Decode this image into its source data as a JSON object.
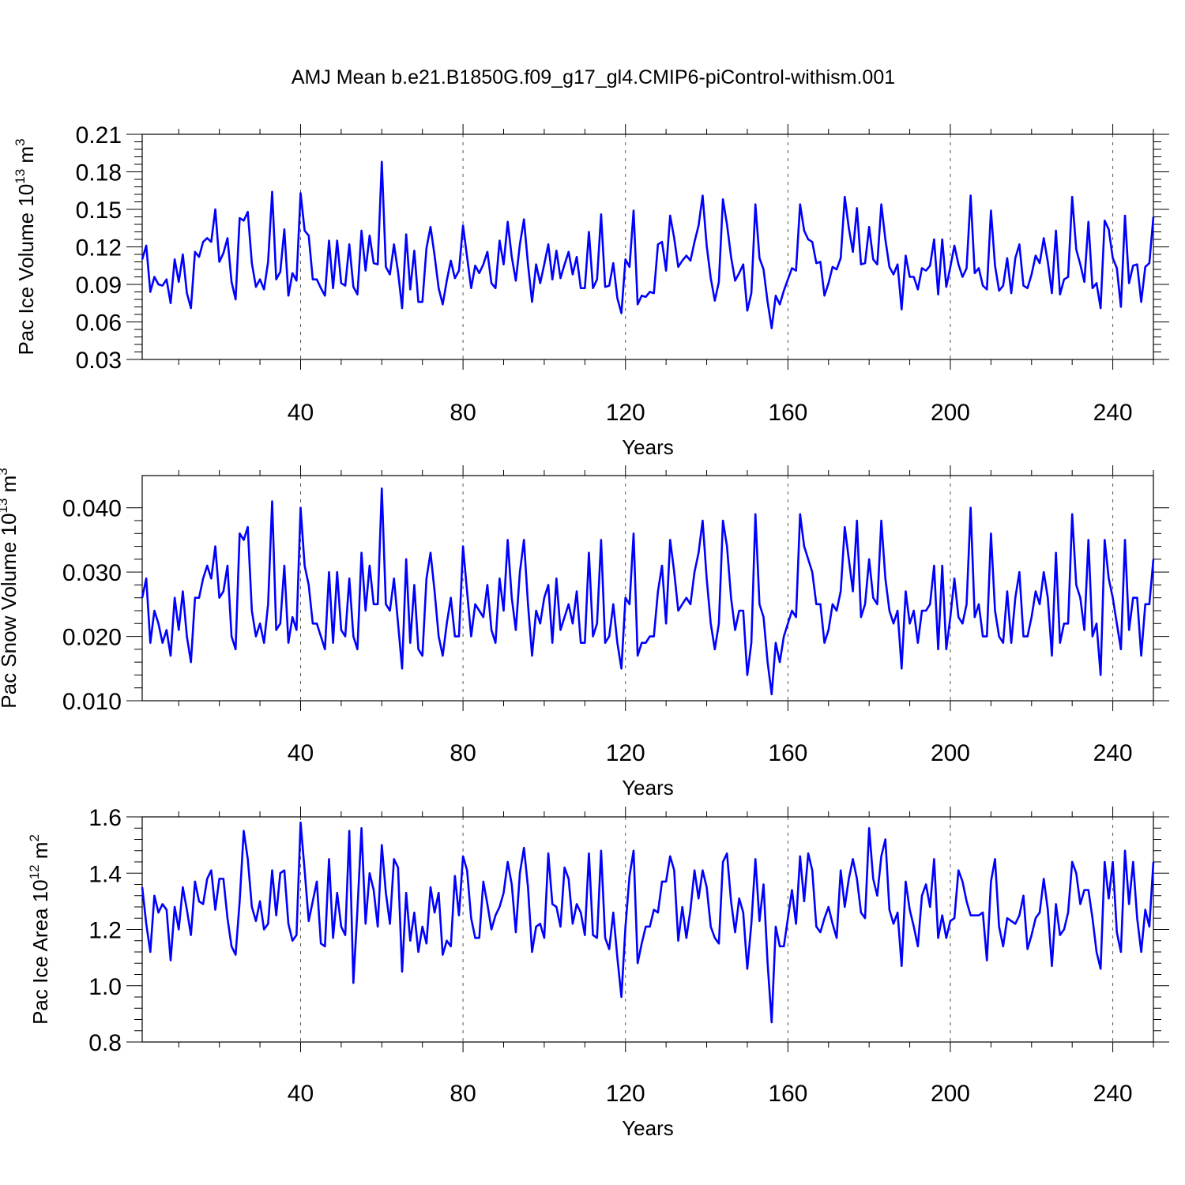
{
  "title": "AMJ Mean b.e21.B1850G.f09_g17_gl4.CMIP6-piControl-withism.001",
  "colors": {
    "line": "#0000ff",
    "axis": "#000000",
    "grid": "#555555"
  },
  "chart_data": [
    {
      "type": "line",
      "title": "AMJ Mean b.e21.B1850G.f09_g17_gl4.CMIP6-piControl-withism.001",
      "xlabel": "Years",
      "ylabel": {
        "main": "Pac Ice Volume 10",
        "sup": "13",
        "unit": " m",
        "unit_sup": "3"
      },
      "xlim": [
        1,
        250
      ],
      "ylim": [
        0.03,
        0.21
      ],
      "xticks": [
        40,
        80,
        120,
        160,
        200,
        240
      ],
      "xtick_labels": [
        "40",
        "80",
        "120",
        "160",
        "200",
        "240"
      ],
      "yticks": [
        0.03,
        0.06,
        0.09,
        0.12,
        0.15,
        0.18,
        0.21
      ],
      "ytick_labels": [
        "0.03",
        "0.06",
        "0.09",
        "0.12",
        "0.15",
        "0.18",
        "0.21"
      ],
      "grid": "vertical dashed at major x ticks",
      "x_start": 1,
      "values": [
        0.11,
        0.121,
        0.084,
        0.096,
        0.09,
        0.089,
        0.094,
        0.075,
        0.11,
        0.092,
        0.114,
        0.083,
        0.071,
        0.116,
        0.112,
        0.124,
        0.127,
        0.124,
        0.15,
        0.108,
        0.115,
        0.127,
        0.092,
        0.078,
        0.143,
        0.141,
        0.148,
        0.107,
        0.088,
        0.094,
        0.086,
        0.108,
        0.164,
        0.094,
        0.1,
        0.134,
        0.081,
        0.099,
        0.093,
        0.163,
        0.133,
        0.129,
        0.094,
        0.094,
        0.087,
        0.081,
        0.125,
        0.087,
        0.125,
        0.091,
        0.089,
        0.122,
        0.088,
        0.082,
        0.133,
        0.101,
        0.129,
        0.107,
        0.106,
        0.188,
        0.104,
        0.098,
        0.122,
        0.1,
        0.071,
        0.13,
        0.086,
        0.117,
        0.076,
        0.076,
        0.119,
        0.136,
        0.113,
        0.087,
        0.074,
        0.093,
        0.109,
        0.095,
        0.101,
        0.137,
        0.112,
        0.087,
        0.105,
        0.099,
        0.106,
        0.116,
        0.091,
        0.087,
        0.125,
        0.106,
        0.14,
        0.112,
        0.093,
        0.122,
        0.142,
        0.106,
        0.076,
        0.106,
        0.091,
        0.106,
        0.122,
        0.094,
        0.117,
        0.095,
        0.106,
        0.116,
        0.098,
        0.112,
        0.087,
        0.087,
        0.132,
        0.087,
        0.094,
        0.146,
        0.088,
        0.089,
        0.107,
        0.079,
        0.067,
        0.11,
        0.104,
        0.149,
        0.074,
        0.081,
        0.08,
        0.084,
        0.083,
        0.122,
        0.124,
        0.101,
        0.145,
        0.127,
        0.104,
        0.109,
        0.113,
        0.109,
        0.124,
        0.137,
        0.161,
        0.121,
        0.095,
        0.077,
        0.092,
        0.158,
        0.138,
        0.112,
        0.093,
        0.099,
        0.106,
        0.069,
        0.083,
        0.154,
        0.111,
        0.102,
        0.076,
        0.055,
        0.081,
        0.074,
        0.085,
        0.094,
        0.103,
        0.101,
        0.154,
        0.133,
        0.126,
        0.124,
        0.107,
        0.108,
        0.081,
        0.091,
        0.104,
        0.102,
        0.111,
        0.16,
        0.135,
        0.116,
        0.151,
        0.106,
        0.107,
        0.136,
        0.11,
        0.106,
        0.154,
        0.126,
        0.104,
        0.098,
        0.106,
        0.07,
        0.113,
        0.096,
        0.096,
        0.086,
        0.103,
        0.101,
        0.105,
        0.126,
        0.082,
        0.126,
        0.088,
        0.104,
        0.121,
        0.106,
        0.096,
        0.103,
        0.161,
        0.099,
        0.103,
        0.089,
        0.086,
        0.149,
        0.105,
        0.085,
        0.089,
        0.111,
        0.083,
        0.111,
        0.122,
        0.089,
        0.087,
        0.098,
        0.113,
        0.107,
        0.127,
        0.108,
        0.083,
        0.133,
        0.082,
        0.094,
        0.096,
        0.16,
        0.118,
        0.106,
        0.092,
        0.14,
        0.087,
        0.091,
        0.071,
        0.141,
        0.134,
        0.111,
        0.103,
        0.072,
        0.145,
        0.091,
        0.105,
        0.106,
        0.076,
        0.104,
        0.107,
        0.144
      ]
    },
    {
      "type": "line",
      "xlabel": "Years",
      "ylabel": {
        "main": "Pac Snow Volume 10",
        "sup": "13",
        "unit": " m",
        "unit_sup": "3"
      },
      "xlim": [
        1,
        250
      ],
      "ylim": [
        0.01,
        0.045
      ],
      "xticks": [
        40,
        80,
        120,
        160,
        200,
        240
      ],
      "xtick_labels": [
        "40",
        "80",
        "120",
        "160",
        "200",
        "240"
      ],
      "yticks": [
        0.01,
        0.02,
        0.03,
        0.04
      ],
      "ytick_labels": [
        "0.010",
        "0.020",
        "0.030",
        "0.040"
      ],
      "grid": "vertical dashed at major x ticks",
      "x_start": 1,
      "values": [
        0.026,
        0.029,
        0.019,
        0.024,
        0.022,
        0.019,
        0.021,
        0.017,
        0.026,
        0.021,
        0.027,
        0.02,
        0.016,
        0.026,
        0.026,
        0.029,
        0.031,
        0.029,
        0.034,
        0.026,
        0.027,
        0.031,
        0.02,
        0.018,
        0.036,
        0.035,
        0.037,
        0.024,
        0.02,
        0.022,
        0.019,
        0.025,
        0.041,
        0.021,
        0.022,
        0.031,
        0.019,
        0.023,
        0.021,
        0.04,
        0.031,
        0.028,
        0.022,
        0.022,
        0.02,
        0.018,
        0.03,
        0.019,
        0.03,
        0.021,
        0.02,
        0.029,
        0.02,
        0.018,
        0.033,
        0.024,
        0.031,
        0.025,
        0.025,
        0.043,
        0.025,
        0.024,
        0.029,
        0.022,
        0.015,
        0.032,
        0.019,
        0.028,
        0.018,
        0.017,
        0.029,
        0.033,
        0.027,
        0.02,
        0.017,
        0.022,
        0.026,
        0.02,
        0.02,
        0.034,
        0.027,
        0.02,
        0.025,
        0.024,
        0.023,
        0.028,
        0.021,
        0.019,
        0.029,
        0.024,
        0.035,
        0.026,
        0.021,
        0.03,
        0.035,
        0.025,
        0.017,
        0.024,
        0.022,
        0.026,
        0.028,
        0.019,
        0.029,
        0.021,
        0.023,
        0.025,
        0.022,
        0.027,
        0.019,
        0.019,
        0.033,
        0.02,
        0.022,
        0.035,
        0.019,
        0.02,
        0.025,
        0.019,
        0.015,
        0.026,
        0.025,
        0.036,
        0.017,
        0.019,
        0.019,
        0.02,
        0.02,
        0.027,
        0.031,
        0.022,
        0.035,
        0.03,
        0.024,
        0.025,
        0.026,
        0.025,
        0.03,
        0.033,
        0.038,
        0.029,
        0.022,
        0.018,
        0.022,
        0.038,
        0.034,
        0.026,
        0.021,
        0.024,
        0.024,
        0.014,
        0.019,
        0.039,
        0.025,
        0.023,
        0.016,
        0.011,
        0.019,
        0.016,
        0.02,
        0.022,
        0.024,
        0.023,
        0.039,
        0.034,
        0.032,
        0.03,
        0.025,
        0.025,
        0.019,
        0.021,
        0.025,
        0.024,
        0.027,
        0.037,
        0.032,
        0.027,
        0.038,
        0.023,
        0.025,
        0.032,
        0.026,
        0.025,
        0.038,
        0.029,
        0.024,
        0.022,
        0.024,
        0.015,
        0.027,
        0.022,
        0.024,
        0.019,
        0.024,
        0.024,
        0.025,
        0.031,
        0.018,
        0.031,
        0.018,
        0.023,
        0.029,
        0.023,
        0.022,
        0.025,
        0.04,
        0.023,
        0.025,
        0.02,
        0.02,
        0.036,
        0.024,
        0.02,
        0.019,
        0.027,
        0.019,
        0.026,
        0.03,
        0.02,
        0.02,
        0.023,
        0.027,
        0.025,
        0.03,
        0.026,
        0.017,
        0.033,
        0.019,
        0.022,
        0.022,
        0.039,
        0.028,
        0.026,
        0.021,
        0.035,
        0.02,
        0.022,
        0.014,
        0.035,
        0.029,
        0.026,
        0.022,
        0.018,
        0.035,
        0.021,
        0.026,
        0.026,
        0.017,
        0.025,
        0.025,
        0.032
      ]
    },
    {
      "type": "line",
      "xlabel": "Years",
      "ylabel": {
        "main": "Pac Ice Area 10",
        "sup": "12",
        "unit": " m",
        "unit_sup": "2"
      },
      "xlim": [
        1,
        250
      ],
      "ylim": [
        0.8,
        1.6
      ],
      "xticks": [
        40,
        80,
        120,
        160,
        200,
        240
      ],
      "xtick_labels": [
        "40",
        "80",
        "120",
        "160",
        "200",
        "240"
      ],
      "yticks": [
        0.8,
        1.0,
        1.2,
        1.4,
        1.6
      ],
      "ytick_labels": [
        "0.8",
        "1.0",
        "1.2",
        "1.4",
        "1.6"
      ],
      "grid": "vertical dashed at major x ticks",
      "x_start": 1,
      "values": [
        1.35,
        1.22,
        1.12,
        1.32,
        1.26,
        1.29,
        1.27,
        1.09,
        1.28,
        1.2,
        1.35,
        1.27,
        1.18,
        1.37,
        1.3,
        1.29,
        1.38,
        1.41,
        1.27,
        1.38,
        1.38,
        1.24,
        1.14,
        1.11,
        1.3,
        1.55,
        1.45,
        1.28,
        1.23,
        1.3,
        1.2,
        1.22,
        1.41,
        1.25,
        1.4,
        1.41,
        1.22,
        1.16,
        1.18,
        1.58,
        1.41,
        1.23,
        1.3,
        1.37,
        1.15,
        1.14,
        1.45,
        1.17,
        1.33,
        1.21,
        1.18,
        1.55,
        1.01,
        1.27,
        1.56,
        1.22,
        1.4,
        1.34,
        1.21,
        1.5,
        1.33,
        1.22,
        1.45,
        1.42,
        1.05,
        1.33,
        1.16,
        1.26,
        1.12,
        1.21,
        1.15,
        1.35,
        1.26,
        1.33,
        1.11,
        1.16,
        1.14,
        1.39,
        1.25,
        1.46,
        1.41,
        1.24,
        1.17,
        1.17,
        1.37,
        1.29,
        1.2,
        1.25,
        1.28,
        1.33,
        1.44,
        1.36,
        1.19,
        1.4,
        1.49,
        1.35,
        1.12,
        1.21,
        1.22,
        1.17,
        1.47,
        1.29,
        1.28,
        1.21,
        1.42,
        1.38,
        1.22,
        1.29,
        1.26,
        1.18,
        1.47,
        1.18,
        1.17,
        1.48,
        1.17,
        1.13,
        1.26,
        1.1,
        0.96,
        1.21,
        1.39,
        1.48,
        1.08,
        1.15,
        1.21,
        1.21,
        1.27,
        1.26,
        1.37,
        1.37,
        1.46,
        1.41,
        1.16,
        1.28,
        1.17,
        1.27,
        1.41,
        1.31,
        1.41,
        1.35,
        1.21,
        1.17,
        1.15,
        1.44,
        1.47,
        1.3,
        1.19,
        1.31,
        1.26,
        1.06,
        1.22,
        1.45,
        1.23,
        1.36,
        1.08,
        0.87,
        1.21,
        1.14,
        1.14,
        1.24,
        1.34,
        1.22,
        1.46,
        1.3,
        1.47,
        1.41,
        1.21,
        1.19,
        1.24,
        1.28,
        1.22,
        1.17,
        1.41,
        1.28,
        1.38,
        1.45,
        1.38,
        1.26,
        1.24,
        1.56,
        1.38,
        1.32,
        1.46,
        1.52,
        1.27,
        1.22,
        1.26,
        1.07,
        1.37,
        1.27,
        1.21,
        1.14,
        1.32,
        1.36,
        1.28,
        1.45,
        1.17,
        1.25,
        1.17,
        1.23,
        1.24,
        1.41,
        1.37,
        1.3,
        1.25,
        1.25,
        1.25,
        1.26,
        1.09,
        1.37,
        1.45,
        1.21,
        1.14,
        1.24,
        1.23,
        1.22,
        1.25,
        1.32,
        1.13,
        1.18,
        1.24,
        1.26,
        1.38,
        1.27,
        1.07,
        1.29,
        1.18,
        1.2,
        1.26,
        1.44,
        1.4,
        1.29,
        1.34,
        1.34,
        1.24,
        1.12,
        1.06,
        1.44,
        1.31,
        1.44,
        1.19,
        1.12,
        1.48,
        1.29,
        1.44,
        1.24,
        1.12,
        1.27,
        1.21,
        1.44
      ]
    }
  ]
}
